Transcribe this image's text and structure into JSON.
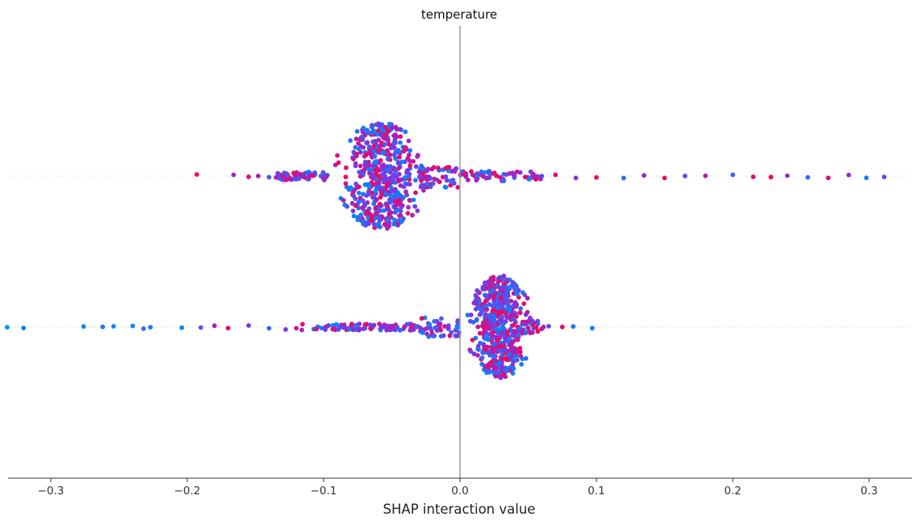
{
  "chart_data": {
    "type": "scatter",
    "title": "temperature",
    "xlabel": "SHAP interaction value",
    "xlim": [
      -0.33,
      0.33
    ],
    "x_ticks": [
      -0.3,
      -0.2,
      -0.1,
      0.0,
      0.1,
      0.2,
      0.3
    ],
    "x_tick_labels": [
      "−0.3",
      "−0.2",
      "−0.1",
      "0.0",
      "0.1",
      "0.2",
      "0.3"
    ],
    "grid": false,
    "legend": "none",
    "colors": {
      "low": "#008bfb",
      "high": "#ff0051",
      "zero_line": "#999999",
      "row_line": "#cccccc",
      "axis": "#333333"
    },
    "series": [
      {
        "values": [
          {
            "x": -0.193,
            "c": 1.0
          },
          {
            "x": -0.166,
            "c": 0.6
          },
          {
            "x": -0.155,
            "c": 0.9
          },
          {
            "x": -0.148,
            "c": 0.7
          },
          {
            "x": -0.14,
            "c": 0.3
          },
          {
            "x": -0.13,
            "c": 0.8
          },
          {
            "x": 0.06,
            "c": 0.4
          },
          {
            "x": 0.07,
            "c": 0.9
          },
          {
            "x": 0.085,
            "c": 0.5
          },
          {
            "x": 0.1,
            "c": 1.0
          },
          {
            "x": 0.12,
            "c": 0.2
          },
          {
            "x": 0.135,
            "c": 0.6
          },
          {
            "x": 0.15,
            "c": 0.95
          },
          {
            "x": 0.165,
            "c": 0.4
          },
          {
            "x": 0.18,
            "c": 0.7
          },
          {
            "x": 0.2,
            "c": 0.3
          },
          {
            "x": 0.215,
            "c": 0.85
          },
          {
            "x": 0.228,
            "c": 1.0
          },
          {
            "x": 0.24,
            "c": 0.5
          },
          {
            "x": 0.255,
            "c": 0.2
          },
          {
            "x": 0.27,
            "c": 0.9
          },
          {
            "x": 0.285,
            "c": 0.6
          },
          {
            "x": 0.298,
            "c": 0.1
          },
          {
            "x": 0.311,
            "c": 0.45
          }
        ]
      },
      {
        "values": [
          {
            "x": -0.332,
            "c": 0.0
          },
          {
            "x": -0.32,
            "c": 0.05
          },
          {
            "x": -0.276,
            "c": 0.0
          },
          {
            "x": -0.262,
            "c": 0.1
          },
          {
            "x": -0.254,
            "c": 0.05
          },
          {
            "x": -0.24,
            "c": 0.0
          },
          {
            "x": -0.232,
            "c": 0.2
          },
          {
            "x": -0.227,
            "c": 0.1
          },
          {
            "x": -0.204,
            "c": 0.0
          },
          {
            "x": -0.19,
            "c": 0.3
          },
          {
            "x": -0.18,
            "c": 0.7
          },
          {
            "x": -0.17,
            "c": 0.9
          },
          {
            "x": -0.155,
            "c": 0.5
          },
          {
            "x": -0.14,
            "c": 0.2
          },
          {
            "x": -0.12,
            "c": 0.8
          },
          {
            "x": 0.065,
            "c": 0.4
          },
          {
            "x": 0.075,
            "c": 0.9
          },
          {
            "x": 0.083,
            "c": 0.2
          },
          {
            "x": 0.097,
            "c": 0.05
          }
        ]
      }
    ]
  }
}
